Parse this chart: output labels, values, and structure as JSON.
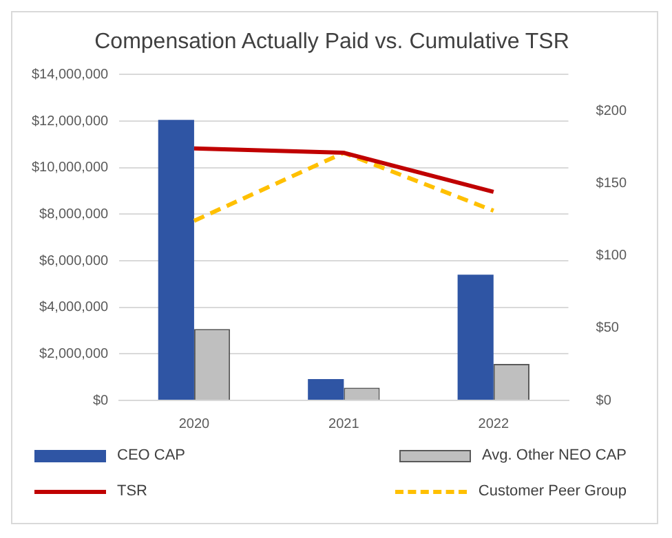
{
  "chart_data": {
    "type": "bar",
    "title": "Compensation Actually Paid vs. Cumulative TSR",
    "categories": [
      "2020",
      "2021",
      "2022"
    ],
    "series": [
      {
        "name": "CEO CAP",
        "color": "#2f55a4",
        "values": [
          12050000,
          920000,
          5400000
        ]
      },
      {
        "name": "Avg. Other NEO CAP",
        "color": "#bfbfbf",
        "values": [
          3070000,
          550000,
          1570000
        ]
      },
      {
        "name": "TSR",
        "type": "line",
        "axis": "y2",
        "color": "#c00000",
        "line_style": "solid",
        "values": [
          174,
          171,
          144
        ]
      },
      {
        "name": "Customer Peer Group",
        "type": "line",
        "axis": "y2",
        "color": "#ffc000",
        "line_style": "dashed",
        "values": [
          124,
          171,
          131
        ]
      }
    ],
    "ylim": [
      0,
      14000000
    ],
    "yticks": [
      {
        "value": 0,
        "label": "$0"
      },
      {
        "value": 2000000,
        "label": "$2,000,000"
      },
      {
        "value": 4000000,
        "label": "$4,000,000"
      },
      {
        "value": 6000000,
        "label": "$6,000,000"
      },
      {
        "value": 8000000,
        "label": "$8,000,000"
      },
      {
        "value": 10000000,
        "label": "$10,000,000"
      },
      {
        "value": 12000000,
        "label": "$12,000,000"
      },
      {
        "value": 14000000,
        "label": "$14,000,000"
      }
    ],
    "y2lim": [
      0,
      225
    ],
    "y2ticks": [
      {
        "value": 0,
        "label": "$0"
      },
      {
        "value": 50,
        "label": "$50"
      },
      {
        "value": 100,
        "label": "$100"
      },
      {
        "value": 150,
        "label": "$150"
      },
      {
        "value": 200,
        "label": "$200"
      }
    ],
    "grid": "y",
    "legend": "bottom",
    "marker": "none"
  }
}
